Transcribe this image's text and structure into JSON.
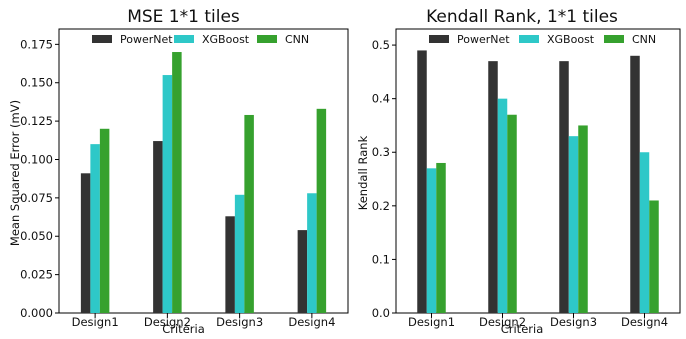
{
  "colors": {
    "PowerNet": "#333333",
    "XGBoost": "#2ec8c8",
    "CNN": "#36a12e"
  },
  "chart_data": [
    {
      "type": "bar",
      "title": "MSE 1*1 tiles",
      "xlabel": "Criteria",
      "ylabel": "Mean Squared Error (mV)",
      "categories": [
        "Design1",
        "Design2",
        "Design3",
        "Design4"
      ],
      "series": [
        {
          "name": "PowerNet",
          "values": [
            0.091,
            0.112,
            0.063,
            0.054
          ]
        },
        {
          "name": "XGBoost",
          "values": [
            0.11,
            0.155,
            0.077,
            0.078
          ]
        },
        {
          "name": "CNN",
          "values": [
            0.12,
            0.17,
            0.129,
            0.133
          ]
        }
      ],
      "ylim": [
        0,
        0.185
      ],
      "yticks": [
        "0.000",
        "0.025",
        "0.050",
        "0.075",
        "0.100",
        "0.125",
        "0.150",
        "0.175"
      ],
      "legend": "top",
      "grid": false
    },
    {
      "type": "bar",
      "title": "Kendall Rank, 1*1 tiles",
      "xlabel": "Criteria",
      "ylabel": "Kendall Rank",
      "categories": [
        "Design1",
        "Design2",
        "Design3",
        "Design4"
      ],
      "series": [
        {
          "name": "PowerNet",
          "values": [
            0.49,
            0.47,
            0.47,
            0.48
          ]
        },
        {
          "name": "XGBoost",
          "values": [
            0.27,
            0.4,
            0.33,
            0.3
          ]
        },
        {
          "name": "CNN",
          "values": [
            0.28,
            0.37,
            0.35,
            0.21
          ]
        }
      ],
      "ylim": [
        0,
        0.53
      ],
      "yticks": [
        "0.0",
        "0.1",
        "0.2",
        "0.3",
        "0.4",
        "0.5"
      ],
      "legend": "top",
      "grid": false
    }
  ]
}
